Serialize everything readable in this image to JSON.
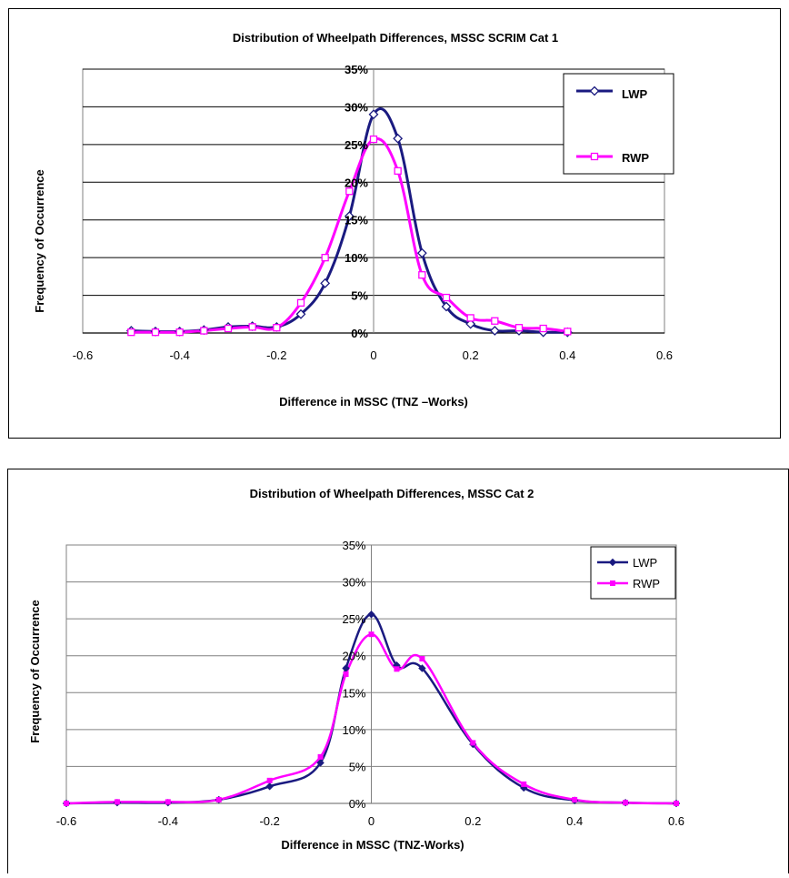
{
  "charts": [
    {
      "colors": {
        "lwp": "#1a1a80",
        "rwp": "#ff00ff",
        "grid": "#000000"
      },
      "marker_style": "hollow",
      "chart_data": {
        "type": "line",
        "title": "Distribution of Wheelpath Differences, MSSC SCRIM Cat 1",
        "xlabel": "Difference in MSSC (TNZ –Works)",
        "ylabel": "Frequency of Occurrence",
        "xlim": [
          -0.6,
          0.6
        ],
        "ylim": [
          0,
          0.35
        ],
        "xticks": [
          "-0.6",
          "-0.4",
          "-0.2",
          "0",
          "0.2",
          "0.4",
          "0.6"
        ],
        "yticks": [
          "0%",
          "5%",
          "10%",
          "15%",
          "20%",
          "25%",
          "30%",
          "35%"
        ],
        "grid": "horizontal",
        "legend_position": "top-right",
        "x": [
          -0.5,
          -0.45,
          -0.4,
          -0.35,
          -0.3,
          -0.25,
          -0.2,
          -0.15,
          -0.1,
          -0.05,
          0,
          0.05,
          0.1,
          0.15,
          0.2,
          0.25,
          0.3,
          0.35,
          0.4
        ],
        "series": [
          {
            "name": "LWP",
            "marker": "diamond",
            "values": [
              0.003,
              0.002,
              0.002,
              0.004,
              0.008,
              0.009,
              0.008,
              0.025,
              0.066,
              0.155,
              0.29,
              0.258,
              0.106,
              0.035,
              0.012,
              0.003,
              0.003,
              0.001,
              0.001
            ]
          },
          {
            "name": "RWP",
            "marker": "square",
            "values": [
              0.001,
              0.001,
              0.001,
              0.003,
              0.006,
              0.008,
              0.007,
              0.04,
              0.1,
              0.188,
              0.257,
              0.215,
              0.077,
              0.047,
              0.02,
              0.016,
              0.007,
              0.006,
              0.002
            ]
          }
        ]
      }
    },
    {
      "colors": {
        "lwp": "#1a1a80",
        "rwp": "#ff00ff",
        "grid": "#808080"
      },
      "marker_style": "filled",
      "chart_data": {
        "type": "line",
        "title": "Distribution of Wheelpath Differences, MSSC Cat 2",
        "xlabel": "Difference in MSSC (TNZ-Works)",
        "ylabel": "Frequency of Occurrence",
        "xlim": [
          -0.6,
          0.6
        ],
        "ylim": [
          0,
          0.35
        ],
        "xticks": [
          "-0.6",
          "-0.4",
          "-0.2",
          "0",
          "0.2",
          "0.4",
          "0.6"
        ],
        "yticks": [
          "0%",
          "5%",
          "10%",
          "15%",
          "20%",
          "25%",
          "30%",
          "35%"
        ],
        "grid": "horizontal",
        "legend_position": "top-right",
        "x": [
          -0.6,
          -0.5,
          -0.4,
          -0.3,
          -0.2,
          -0.1,
          -0.05,
          0,
          0.05,
          0.1,
          0.2,
          0.3,
          0.4,
          0.5,
          0.6
        ],
        "series": [
          {
            "name": "LWP",
            "marker": "diamond",
            "values": [
              0.0,
              0.001,
              0.001,
              0.005,
              0.023,
              0.055,
              0.183,
              0.256,
              0.187,
              0.183,
              0.08,
              0.021,
              0.004,
              0.001,
              0.0
            ]
          },
          {
            "name": "RWP",
            "marker": "square",
            "values": [
              0.0,
              0.002,
              0.002,
              0.005,
              0.031,
              0.063,
              0.175,
              0.229,
              0.182,
              0.196,
              0.082,
              0.026,
              0.005,
              0.001,
              0.0
            ]
          }
        ]
      }
    }
  ]
}
